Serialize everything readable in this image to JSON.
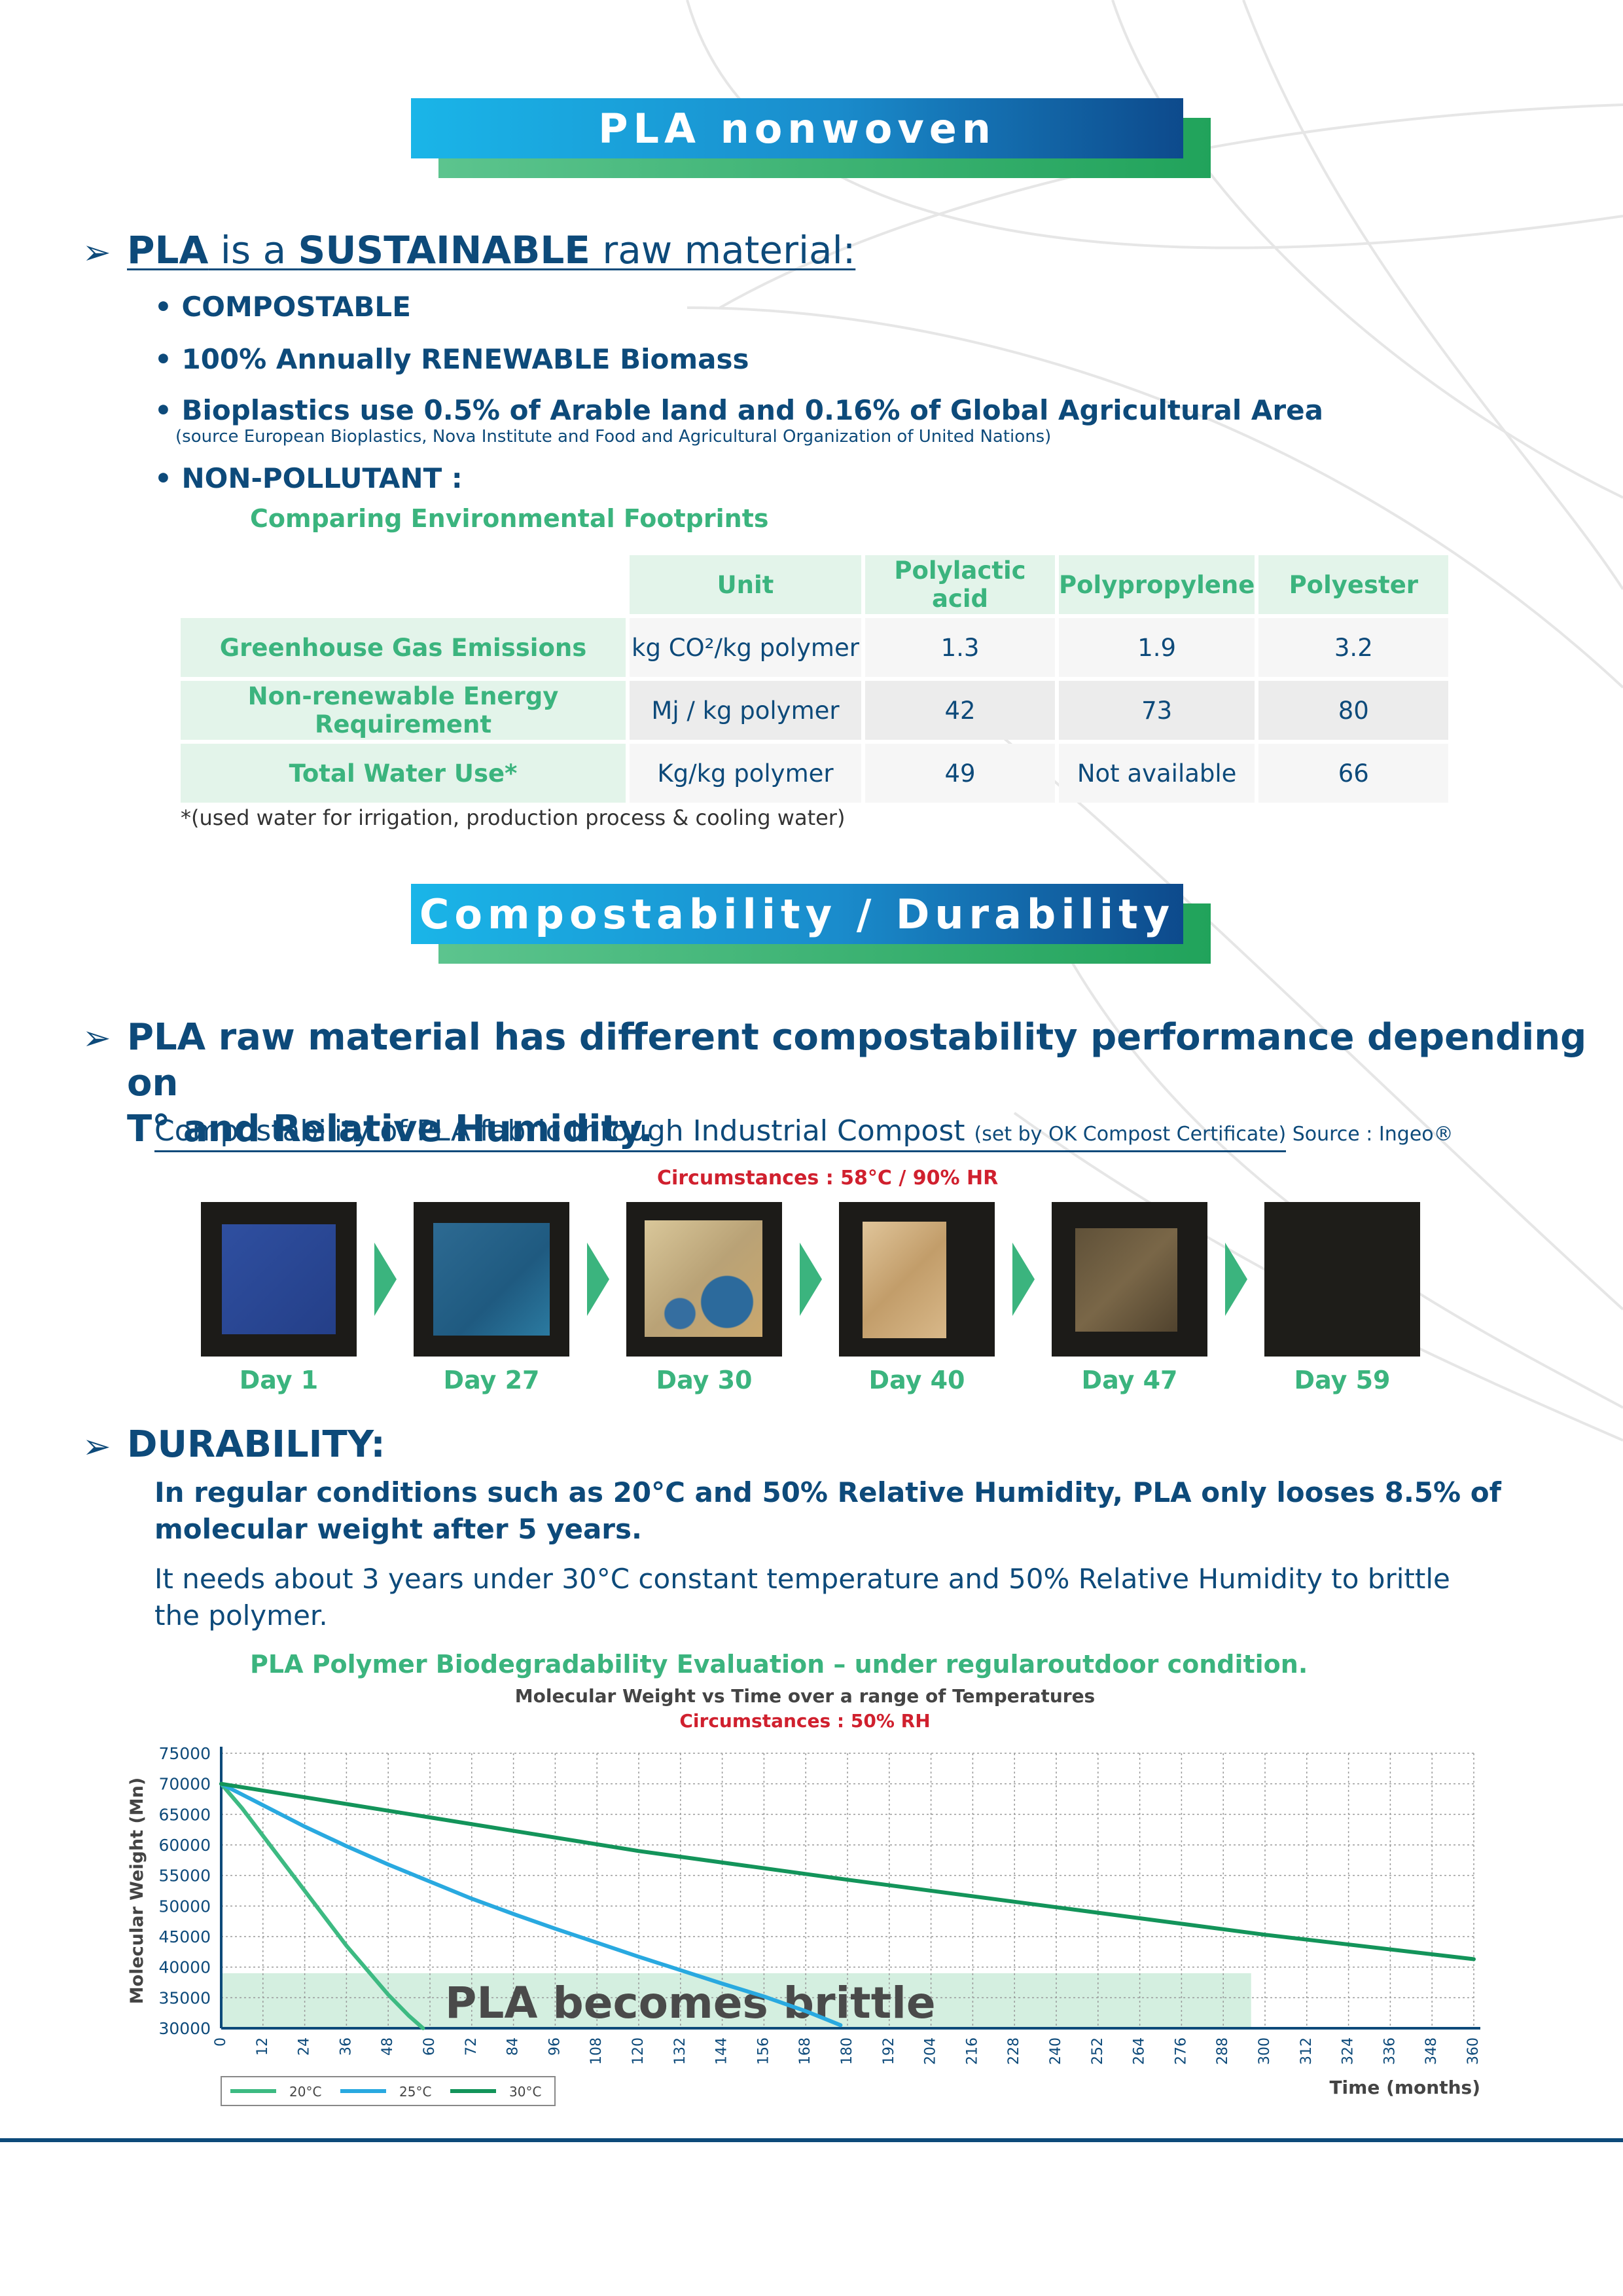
{
  "banner1": "PLA nonwoven",
  "section1": {
    "arrow": "➢",
    "pla": "PLA",
    "is_a": " is a ",
    "sustainable": "SUSTAINABLE",
    "raw": " raw material:",
    "bullets": [
      "• COMPOSTABLE",
      "• 100% Annually RENEWABLE Biomass",
      "• Bioplastics use 0.5% of Arable land and 0.16% of Global Agricultural Area"
    ],
    "source": "(source European Bioplastics, Nova Institute and Food and Agricultural Organization of United Nations)",
    "bullet_nonpollutant": "• NON-POLLUTANT :",
    "table_title": "Comparing Environmental Footprints"
  },
  "table": {
    "headers": [
      "Unit",
      "Polylactic acid",
      "Polypropylene",
      "Polyester"
    ],
    "rows": [
      {
        "label": "Greenhouse Gas Emissions",
        "unit": "kg CO²/kg polymer",
        "pla": "1.3",
        "pp": "1.9",
        "pes": "3.2"
      },
      {
        "label": "Non-renewable Energy Requirement",
        "unit": "Mj / kg polymer",
        "pla": "42",
        "pp": "73",
        "pes": "80"
      },
      {
        "label": "Total Water Use*",
        "unit": "Kg/kg polymer",
        "pla": "49",
        "pp": "Not available",
        "pes": "66"
      }
    ],
    "note": "*(used water for irrigation, production process & cooling water)"
  },
  "banner2": "Compostability / Durability",
  "section2": {
    "heading_line1": "PLA raw material has different compostability performance depending on",
    "heading_line2": "T° and Relative Humidity.",
    "compost_title": "Compostability of PLA fabric through Industrial Compost ",
    "compost_paren": "(set by OK Compost Certificate)",
    "source": " Source : Ingeo®",
    "circumstances": "Circumstances : 58°C / 90% HR",
    "days": [
      "Day 1",
      "Day 27",
      "Day 30",
      "Day 40",
      "Day 47",
      "Day 59"
    ]
  },
  "section3": {
    "heading": "DURABILITY:",
    "para1_line1": "In regular conditions such as 20°C and 50% Relative Humidity, PLA only looses 8.5% of",
    "para1_line2": "molecular weight after 5 years.",
    "para2_line1": "It needs about 3 years under 30°C constant temperature and 50% Relative Humidity to brittle",
    "para2_line2": "the polymer.",
    "chart_heading": "PLA Polymer Biodegradability Evaluation – under regularoutdoor condition."
  },
  "chart_data": {
    "type": "line",
    "title": "Molecular Weight vs Time over a range of Temperatures",
    "subtitle": "Circumstances : 50% RH",
    "ylabel": "Molecular Weight (Mn)",
    "xlabel": "Time (months)",
    "ylim": [
      30000,
      75000
    ],
    "xlim": [
      0,
      360
    ],
    "yticks": [
      "75000",
      "70000",
      "65000",
      "60000",
      "55000",
      "50000",
      "45000",
      "40000",
      "35000",
      "30000"
    ],
    "xticks": [
      "0",
      "12",
      "24",
      "36",
      "48",
      "60",
      "72",
      "84",
      "96",
      "108",
      "120",
      "132",
      "144",
      "156",
      "168",
      "180",
      "192",
      "204",
      "216",
      "228",
      "240",
      "252",
      "264",
      "276",
      "288",
      "300",
      "312",
      "324",
      "336",
      "348",
      "360"
    ],
    "brittle_zone": {
      "label": "PLA becomes brittle",
      "y_from": 30000,
      "y_to": 39000,
      "x_to": 296
    },
    "series": [
      {
        "name": "20°C",
        "color": "#3dba82",
        "x": [
          0,
          6,
          12,
          18,
          24,
          30,
          36,
          42,
          48,
          54,
          58
        ],
        "values": [
          70000,
          66000,
          61500,
          57000,
          52500,
          48000,
          43500,
          39500,
          35500,
          32000,
          30000
        ]
      },
      {
        "name": "25°C",
        "color": "#29a9e0",
        "x": [
          0,
          12,
          24,
          36,
          48,
          60,
          72,
          84,
          96,
          108,
          120,
          132,
          144,
          156,
          168,
          178
        ],
        "values": [
          70000,
          66500,
          63000,
          59800,
          56800,
          54000,
          51200,
          48700,
          46300,
          44000,
          41700,
          39500,
          37300,
          35200,
          32800,
          30500
        ]
      },
      {
        "name": "30°C",
        "color": "#13945a",
        "x": [
          0,
          60,
          120,
          180,
          240,
          300,
          360
        ],
        "values": [
          70000,
          64500,
          59000,
          54300,
          49800,
          45300,
          41300
        ]
      }
    ],
    "legend": "bottom-left",
    "grid": true
  },
  "colors": {
    "navy": "#0d4a7a",
    "green": "#3bb47e",
    "red": "#d0202e",
    "blue": "#1ab5e8"
  }
}
